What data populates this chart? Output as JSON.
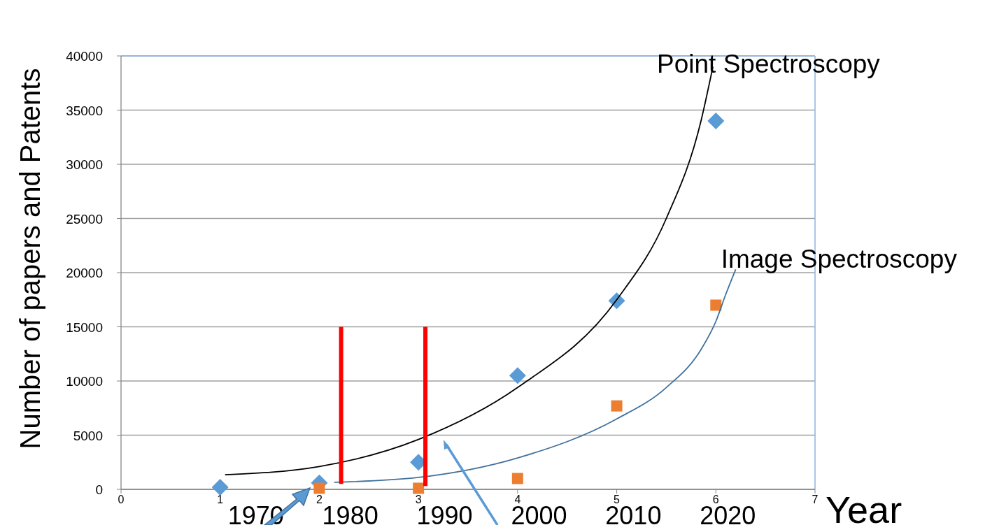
{
  "chart_data": {
    "type": "scatter",
    "xlabel": "Year",
    "ylabel": "Number of papers and Patents",
    "xlim": [
      0,
      7
    ],
    "xticks": [
      0,
      1,
      2,
      3,
      4,
      5,
      6,
      7
    ],
    "ylim": [
      0,
      40000
    ],
    "yticks": [
      0,
      5000,
      10000,
      15000,
      20000,
      25000,
      30000,
      35000,
      40000
    ],
    "grid": "y",
    "legend": false,
    "annotations": [
      "1970",
      "1980",
      "1990",
      "2000",
      "2010",
      "2020"
    ],
    "series": [
      {
        "type": "scatter",
        "marker": "diamond",
        "color": "#5b9bd5",
        "x": [
          1,
          2,
          3,
          4,
          5,
          6
        ],
        "values": [
          200,
          600,
          2500,
          10500,
          17400,
          34000
        ]
      },
      {
        "type": "scatter",
        "marker": "square",
        "color": "#ed7d31",
        "x": [
          2,
          3,
          4,
          5,
          6
        ],
        "values": [
          100,
          100,
          1000,
          7700,
          17000
        ]
      },
      {
        "type": "line",
        "name": "Point Spectroscopy",
        "color": "#000000",
        "x": [
          1.05,
          2,
          3,
          4,
          5,
          5.5,
          5.85,
          5.97
        ],
        "values": [
          1350,
          2100,
          4600,
          9400,
          17500,
          25000,
          34000,
          39000
        ]
      },
      {
        "type": "line",
        "name": "Image  Spectroscopy",
        "color": "#41719c",
        "x": [
          2.15,
          3,
          4,
          5,
          5.5,
          5.85,
          6,
          6.1,
          6.2
        ],
        "values": [
          650,
          1100,
          2900,
          6500,
          9400,
          12900,
          15500,
          18000,
          20300
        ]
      },
      {
        "type": "line",
        "color": "#ff0000",
        "x": [
          2.22,
          2.22
        ],
        "values": [
          500,
          15000
        ]
      },
      {
        "type": "line",
        "color": "#ff0000",
        "x": [
          3.07,
          3.07
        ],
        "values": [
          300,
          15000
        ]
      }
    ]
  }
}
